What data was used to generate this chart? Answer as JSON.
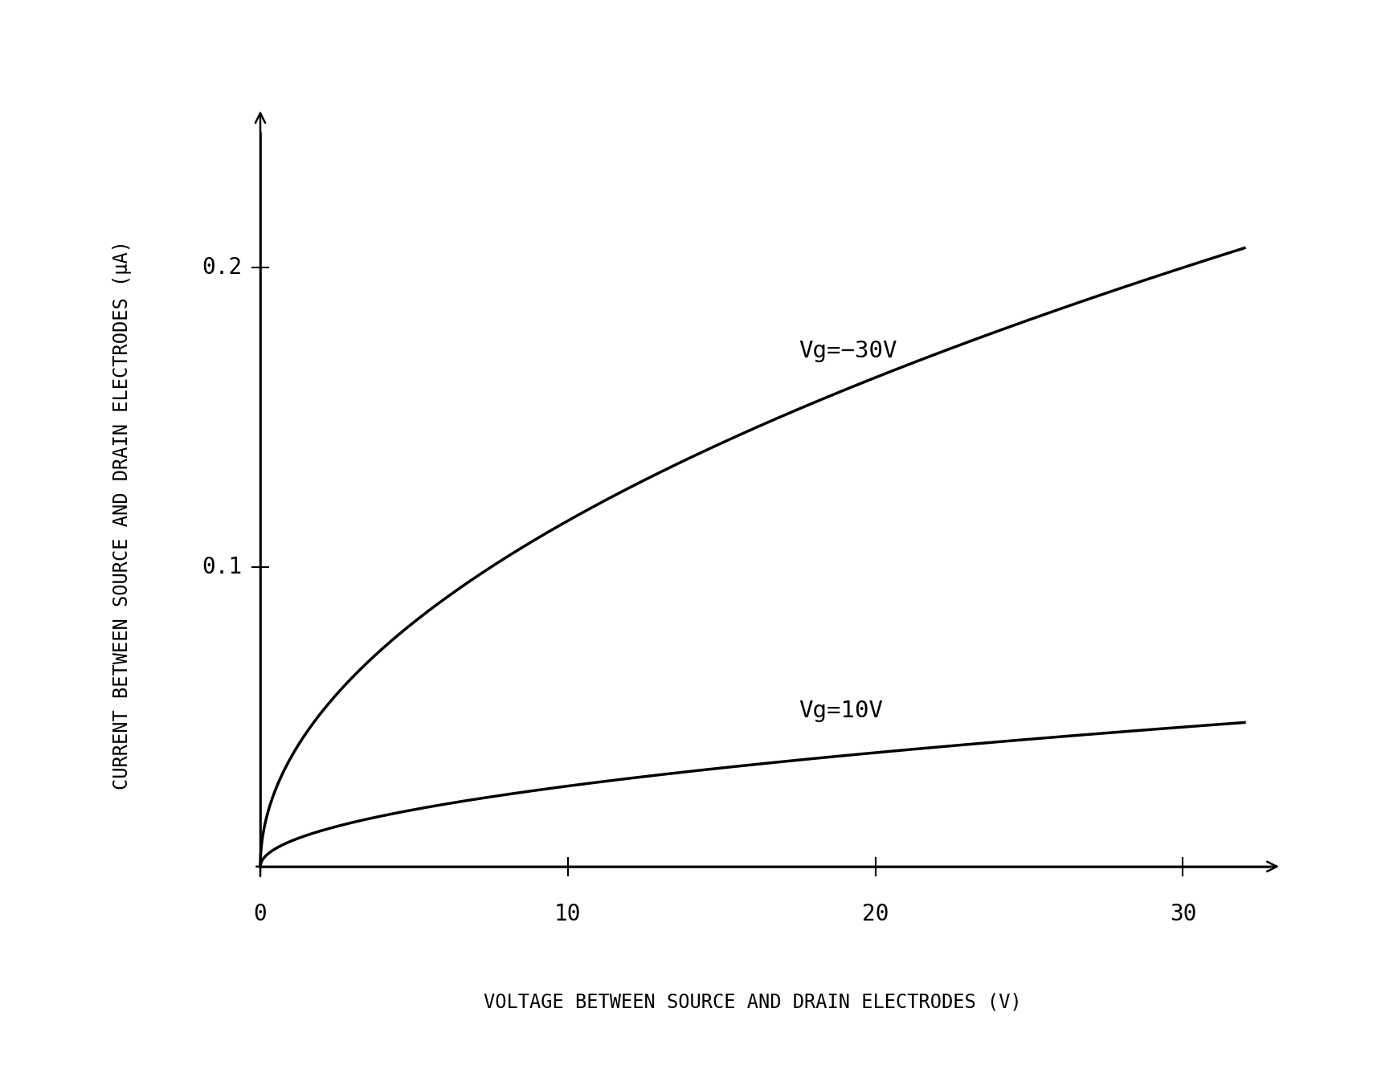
{
  "xlabel": "VOLTAGE BETWEEN SOURCE AND DRAIN ELECTRODES (V)",
  "ylabel": "CURRENT BETWEEN SOURCE AND DRAIN ELECTRODES (μA)",
  "xlim": [
    0,
    32
  ],
  "ylim": [
    0,
    0.235
  ],
  "xticks": [
    0,
    10,
    20,
    30
  ],
  "yticks": [
    0.1,
    0.2
  ],
  "ytick_labels": [
    "0.1",
    "0.2"
  ],
  "curve1_label": "Vg=−30V",
  "curve2_label": "Vg=10V",
  "curve1_scale": 0.0365,
  "curve2_scale": 0.0085,
  "bg_color": "#ffffff",
  "line_color": "#000000",
  "label_fontsize": 17,
  "tick_fontsize": 20,
  "annotation_fontsize": 21,
  "lw": 2.5
}
